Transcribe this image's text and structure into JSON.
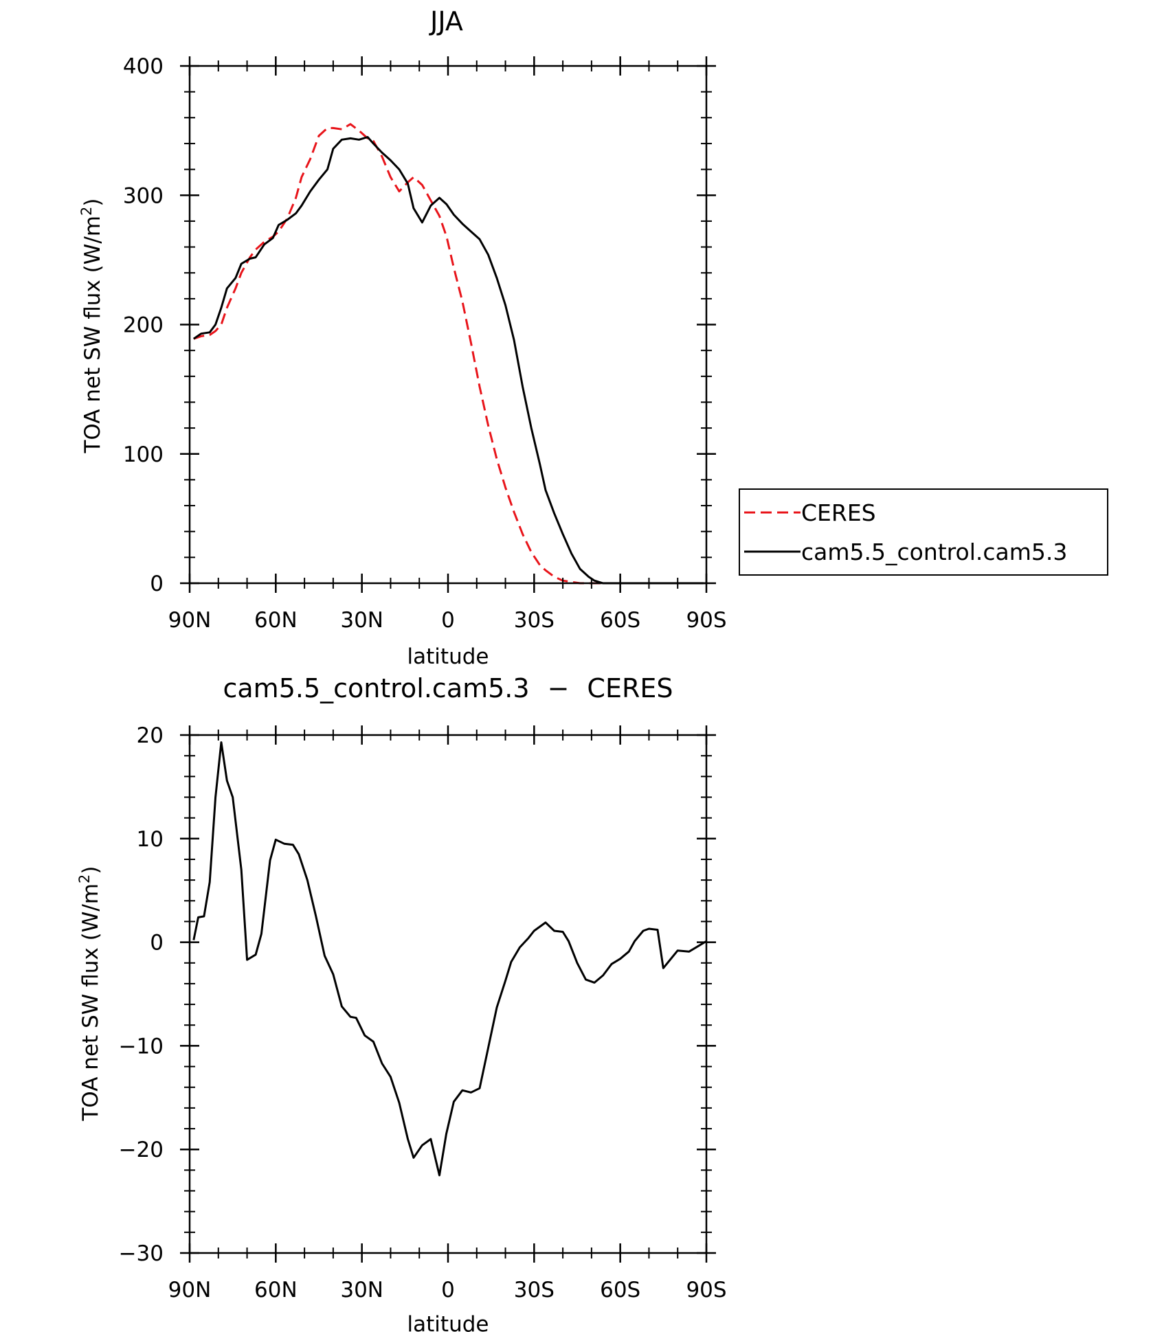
{
  "chart_data": [
    {
      "type": "line",
      "title": "JJA",
      "xlabel": "latitude",
      "ylabel": "TOA net SW flux (W/m²)",
      "ylabel_main": "TOA net SW flux (W/m",
      "ylabel_sup": "2",
      "ylabel_end": ")",
      "xlim": [
        90,
        -90
      ],
      "ylim": [
        0,
        400
      ],
      "xticks": [
        90,
        60,
        30,
        0,
        -30,
        -60,
        -90
      ],
      "xticklabels": [
        "90N",
        "60N",
        "30N",
        "0",
        "30S",
        "60S",
        "90S"
      ],
      "yticks": [
        0,
        100,
        200,
        300,
        400
      ],
      "yticklabels": [
        "0",
        "100",
        "200",
        "300",
        "400"
      ],
      "x": [
        88.6,
        86,
        83,
        81,
        79,
        77,
        74,
        72,
        69,
        67,
        64,
        61,
        59,
        56,
        53,
        51,
        48,
        45,
        42,
        40,
        37,
        34,
        31,
        28,
        26,
        23,
        20,
        17,
        14,
        12,
        9,
        6,
        3,
        0.5,
        -2,
        -5,
        -8,
        -11,
        -14,
        -17,
        -20,
        -23,
        -26,
        -29,
        -32,
        -34,
        -37,
        -40,
        -43,
        -46,
        -49,
        -51,
        -54,
        -57,
        -60,
        -63,
        -66,
        -69,
        -72,
        -75,
        -78,
        -81,
        -84,
        -86,
        -89
      ],
      "series": [
        {
          "name": "CERES",
          "color": "#e8141a",
          "dash": "dashed",
          "values": [
            189,
            191,
            192,
            195,
            200,
            213,
            228,
            240,
            252,
            258,
            264,
            268,
            272,
            282,
            298,
            314,
            328,
            346,
            352,
            352,
            351,
            355,
            350,
            344,
            342,
            330,
            314,
            303,
            310,
            314,
            308,
            296,
            284,
            268,
            244,
            218,
            186,
            152,
            122,
            96,
            74,
            55,
            38,
            24,
            14,
            10,
            5,
            2,
            1,
            0,
            0,
            0,
            0,
            0,
            0,
            0,
            0,
            0,
            0,
            0,
            0,
            0,
            0,
            0,
            0
          ]
        },
        {
          "name": "cam5.5_control.cam5.3",
          "color": "#000000",
          "dash": "solid",
          "values": [
            189,
            193,
            194,
            200,
            213,
            228,
            236,
            247,
            251,
            252,
            262,
            267,
            277,
            281,
            286,
            292,
            303,
            312,
            320,
            336,
            343,
            344,
            343,
            345,
            340,
            333,
            327,
            320,
            309,
            290,
            279,
            292,
            298,
            293,
            285,
            278,
            272,
            266,
            254,
            236,
            215,
            188,
            152,
            120,
            92,
            72,
            54,
            38,
            23,
            11,
            5,
            2,
            0,
            0,
            0,
            0,
            0,
            0,
            0,
            0,
            0,
            0,
            0,
            0,
            0
          ]
        }
      ],
      "legend": {
        "placement": "right",
        "entries": [
          "CERES",
          "cam5.5_control.cam5.3"
        ]
      },
      "grid": false
    },
    {
      "type": "line",
      "title": "cam5.5_control.cam5.3 - CERES",
      "title_prefix": "cam5.5_control.cam5.3",
      "title_dash": "−",
      "title_suffix": "CERES",
      "xlabel": "latitude",
      "ylabel": "TOA net SW flux (W/m²)",
      "ylabel_main": "TOA net SW flux (W/m",
      "ylabel_sup": "2",
      "ylabel_end": ")",
      "xlim": [
        90,
        -90
      ],
      "ylim": [
        -30,
        20
      ],
      "xticks": [
        90,
        60,
        30,
        0,
        -30,
        -60,
        -90
      ],
      "xticklabels": [
        "90N",
        "60N",
        "30N",
        "0",
        "30S",
        "60S",
        "90S"
      ],
      "yticks": [
        -30,
        -20,
        -10,
        0,
        10,
        20
      ],
      "yticklabels": [
        "−30",
        "−20",
        "−10",
        "0",
        "10",
        "20"
      ],
      "x": [
        88.6,
        87,
        85,
        83,
        81,
        79,
        77,
        75,
        72,
        70,
        67,
        65,
        62,
        60,
        57,
        54,
        52,
        49,
        46,
        43,
        40,
        37,
        34,
        32,
        29,
        26,
        23,
        20,
        17,
        14,
        12,
        9,
        6,
        3,
        0.6,
        -2,
        -5,
        -8,
        -11,
        -14,
        -17,
        -20,
        -22,
        -25,
        -28,
        -30,
        -34,
        -37,
        -40,
        -42,
        -45,
        -48,
        -51,
        -54,
        -57,
        -60,
        -63,
        -65,
        -68,
        -70,
        -73,
        -75,
        -80,
        -84,
        -90
      ],
      "series": [
        {
          "name": "",
          "color": "#000000",
          "dash": "solid",
          "values": [
            0.2,
            2.4,
            2.5,
            5.8,
            14,
            19.3,
            15.6,
            14,
            7,
            -1.7,
            -1.2,
            0.8,
            7.9,
            9.9,
            9.5,
            9.4,
            8.5,
            6,
            2.5,
            -1.3,
            -3.1,
            -6.2,
            -7.2,
            -7.3,
            -9,
            -9.6,
            -11.7,
            -13,
            -15.5,
            -19,
            -20.8,
            -19.6,
            -19,
            -22.5,
            -18.5,
            -15.4,
            -14.3,
            -14.5,
            -14.1,
            -10.2,
            -6.3,
            -3.7,
            -1.9,
            -0.5,
            0.4,
            1.1,
            1.9,
            1.1,
            1,
            0.1,
            -2,
            -3.6,
            -3.9,
            -3.2,
            -2.1,
            -1.6,
            -0.9,
            0.1,
            1.1,
            1.3,
            1.2,
            -2.5,
            -0.8,
            -0.9,
            0.1
          ]
        }
      ],
      "grid": false
    }
  ]
}
